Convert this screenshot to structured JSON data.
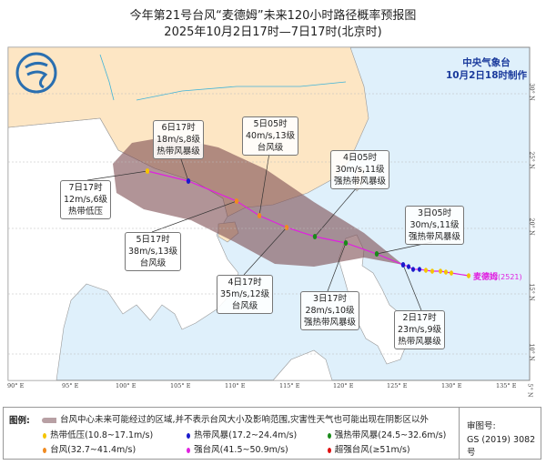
{
  "header": {
    "title": "今年第21号台风“麦德姆”未来120小时路径概率预报图",
    "subtitle": "2025年10月2日17时—7日17时(北京时)"
  },
  "agency": {
    "name": "中央气象台",
    "issued": "10月2日18时制作"
  },
  "typhoon": {
    "name_label": "麦德姆",
    "id_label": "(2521)"
  },
  "colors": {
    "land_china": "#fde6c4",
    "land_other": "#ffffff",
    "sea": "#dff0fb",
    "cone": "#8a5a5e",
    "track": "#e020e0",
    "td": "#f5c400",
    "ts": "#1a1acc",
    "sts": "#1a8a1a",
    "ty": "#f08a20",
    "sty": "#e020e0",
    "superty": "#e01010"
  },
  "lon_ticks": [
    "90° E",
    "95° E",
    "100° E",
    "105° E",
    "110° E",
    "115° E",
    "120° E",
    "125° E",
    "130° E",
    "135° E"
  ],
  "lat_ticks": [
    "30° N",
    "25° N",
    "20° N",
    "15° N",
    "10° N",
    "5° N"
  ],
  "forecast_points": [
    {
      "time": "2日17时",
      "wind": "23m/s,9级",
      "grade": "热带风暴级",
      "cat": "ts"
    },
    {
      "time": "3日05时",
      "wind": "30m/s,11级",
      "grade": "强热带风暴级",
      "cat": "sts"
    },
    {
      "time": "3日17时",
      "wind": "28m/s,10级",
      "grade": "强热带风暴级",
      "cat": "sts"
    },
    {
      "time": "4日05时",
      "wind": "30m/s,11级",
      "grade": "强热带风暴级",
      "cat": "sts"
    },
    {
      "time": "4日17时",
      "wind": "35m/s,12级",
      "grade": "台风级",
      "cat": "ty"
    },
    {
      "time": "5日05时",
      "wind": "40m/s,13级",
      "grade": "台风级",
      "cat": "ty"
    },
    {
      "time": "5日17时",
      "wind": "38m/s,13级",
      "grade": "台风级",
      "cat": "ty"
    },
    {
      "time": "6日17时",
      "wind": "18m/s,8级",
      "grade": "热带风暴级",
      "cat": "ts"
    },
    {
      "time": "7日17时",
      "wind": "12m/s,6级",
      "grade": "热带低压",
      "cat": "td"
    }
  ],
  "legend": {
    "title": "图例:",
    "cone_desc": "台风中心未来可能经过的区域,并不表示台风大小及影响范围,灾害性天气也可能出现在阴影区以外",
    "items": [
      {
        "label": "热带低压(10.8~17.1m/s)",
        "cat": "td"
      },
      {
        "label": "热带风暴(17.2~24.4m/s)",
        "cat": "ts"
      },
      {
        "label": "强热带风暴(24.5~32.6m/s)",
        "cat": "sts"
      },
      {
        "label": "台风(32.7~41.4m/s)",
        "cat": "ty"
      },
      {
        "label": "强台风(41.5~50.9m/s)",
        "cat": "sty"
      },
      {
        "label": "超强台风(≥51m/s)",
        "cat": "superty"
      }
    ],
    "approval_label": "审图号:",
    "approval_no": "GS (2019) 3082号"
  }
}
